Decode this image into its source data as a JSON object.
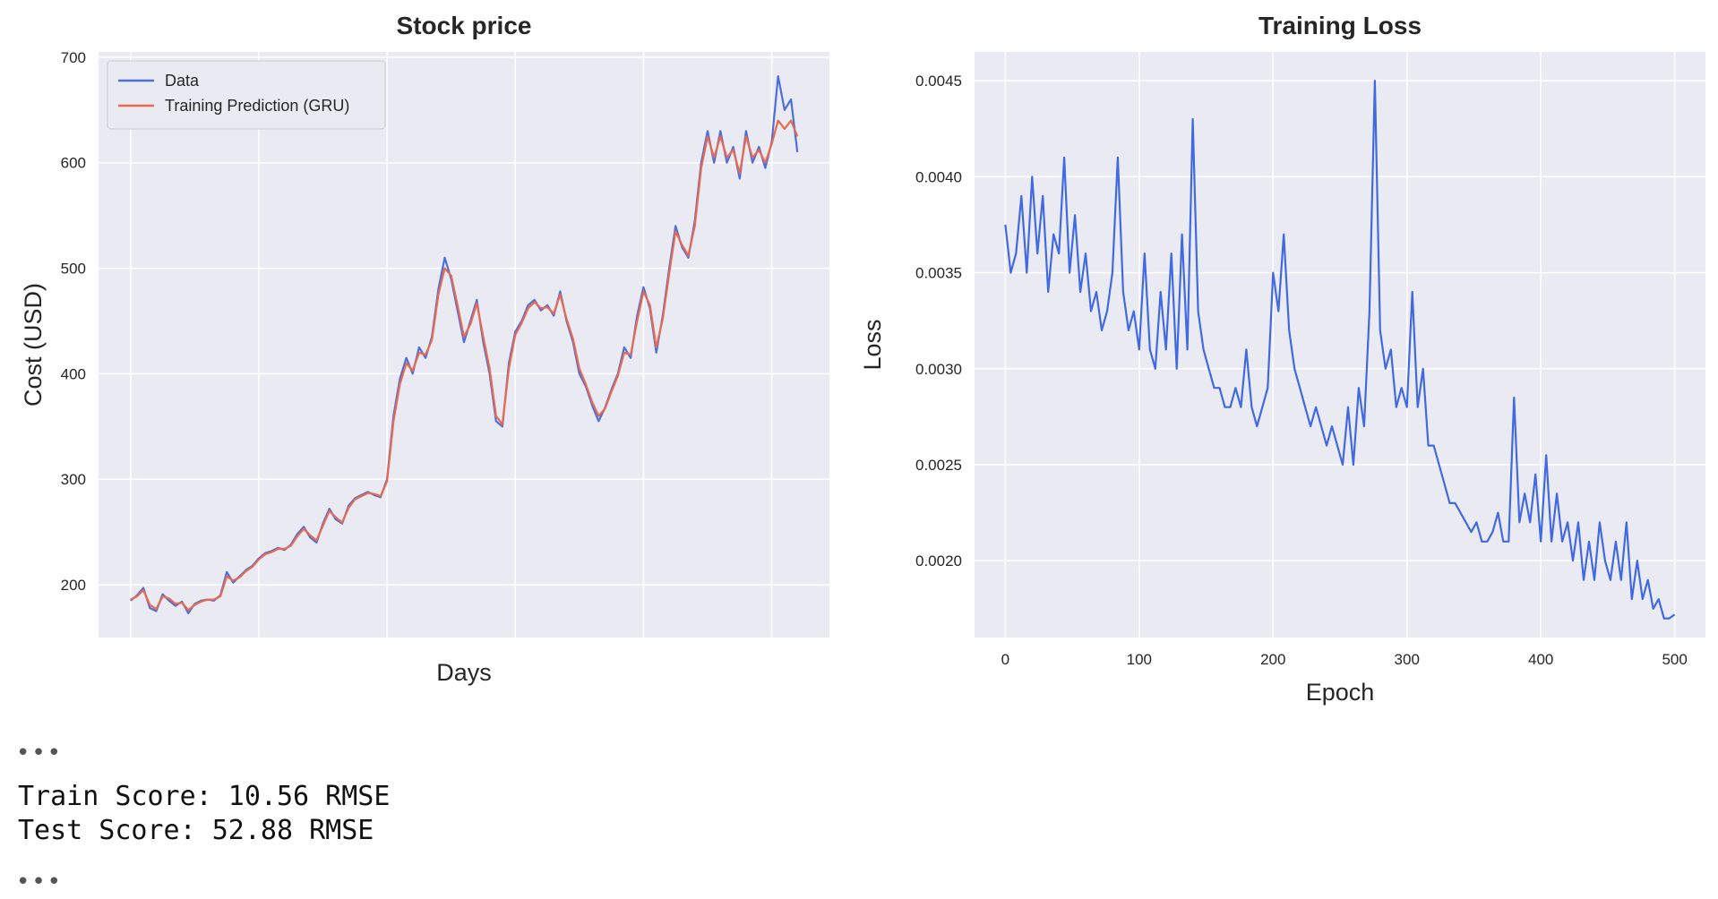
{
  "chart_data": [
    {
      "type": "line",
      "title": "Stock price",
      "xlabel": "Days",
      "ylabel": "Cost (USD)",
      "ylim": [
        150,
        705
      ],
      "xlim": [
        -25,
        545
      ],
      "yticks": [
        200,
        300,
        400,
        500,
        600,
        700
      ],
      "xticks": [],
      "grid": true,
      "legend_position": "top-left",
      "series": [
        {
          "name": "Data",
          "color": "#4c6fde",
          "x": [
            0,
            5,
            10,
            15,
            20,
            25,
            30,
            35,
            40,
            45,
            50,
            55,
            60,
            65,
            70,
            75,
            80,
            85,
            90,
            95,
            100,
            105,
            110,
            115,
            120,
            125,
            130,
            135,
            140,
            145,
            150,
            155,
            160,
            165,
            170,
            175,
            180,
            185,
            190,
            195,
            200,
            205,
            210,
            215,
            220,
            225,
            230,
            235,
            240,
            245,
            250,
            255,
            260,
            265,
            270,
            275,
            280,
            285,
            290,
            295,
            300,
            305,
            310,
            315,
            320,
            325,
            330,
            335,
            340,
            345,
            350,
            355,
            360,
            365,
            370,
            375,
            380,
            385,
            390,
            395,
            400,
            405,
            410,
            415,
            420,
            425,
            430,
            435,
            440,
            445,
            450,
            455,
            460,
            465,
            470,
            475,
            480,
            485,
            490,
            495,
            500,
            505,
            510,
            515,
            520
          ],
          "values": [
            185,
            190,
            197,
            178,
            175,
            191,
            185,
            180,
            184,
            173,
            182,
            185,
            186,
            185,
            190,
            212,
            202,
            208,
            214,
            218,
            225,
            230,
            232,
            235,
            233,
            238,
            248,
            255,
            245,
            240,
            258,
            272,
            262,
            258,
            275,
            282,
            285,
            288,
            285,
            283,
            300,
            360,
            395,
            415,
            400,
            425,
            415,
            435,
            480,
            510,
            490,
            460,
            430,
            450,
            470,
            430,
            400,
            355,
            350,
            410,
            440,
            450,
            465,
            470,
            460,
            465,
            455,
            478,
            450,
            430,
            400,
            388,
            370,
            355,
            368,
            385,
            400,
            425,
            415,
            455,
            482,
            462,
            420,
            455,
            500,
            540,
            520,
            510,
            545,
            600,
            630,
            600,
            630,
            600,
            615,
            585,
            630,
            600,
            615,
            595,
            620,
            682,
            650,
            660,
            610
          ]
        },
        {
          "name": "Training Prediction (GRU)",
          "color": "#e8694f",
          "x": [
            0,
            5,
            10,
            15,
            20,
            25,
            30,
            35,
            40,
            45,
            50,
            55,
            60,
            65,
            70,
            75,
            80,
            85,
            90,
            95,
            100,
            105,
            110,
            115,
            120,
            125,
            130,
            135,
            140,
            145,
            150,
            155,
            160,
            165,
            170,
            175,
            180,
            185,
            190,
            195,
            200,
            205,
            210,
            215,
            220,
            225,
            230,
            235,
            240,
            245,
            250,
            255,
            260,
            265,
            270,
            275,
            280,
            285,
            290,
            295,
            300,
            305,
            310,
            315,
            320,
            325,
            330,
            335,
            340,
            345,
            350,
            355,
            360,
            365,
            370,
            375,
            380,
            385,
            390,
            395,
            400,
            405,
            410,
            415,
            420,
            425,
            430,
            435,
            440,
            445,
            450,
            455,
            460,
            465,
            470,
            475,
            480,
            485,
            490,
            495,
            500,
            505,
            510,
            515,
            520
          ],
          "values": [
            186,
            189,
            195,
            181,
            177,
            189,
            187,
            182,
            183,
            176,
            181,
            184,
            186,
            186,
            189,
            208,
            204,
            207,
            213,
            217,
            224,
            229,
            231,
            234,
            234,
            237,
            246,
            253,
            247,
            242,
            256,
            270,
            264,
            259,
            273,
            281,
            284,
            287,
            286,
            284,
            298,
            355,
            390,
            410,
            403,
            420,
            418,
            432,
            475,
            500,
            493,
            465,
            435,
            447,
            467,
            435,
            405,
            360,
            352,
            405,
            437,
            448,
            462,
            468,
            462,
            463,
            457,
            475,
            452,
            433,
            405,
            390,
            373,
            360,
            367,
            383,
            398,
            420,
            418,
            450,
            478,
            465,
            425,
            452,
            495,
            535,
            522,
            512,
            540,
            595,
            625,
            605,
            625,
            605,
            612,
            590,
            625,
            605,
            612,
            600,
            618,
            640,
            632,
            640,
            625
          ]
        }
      ]
    },
    {
      "type": "line",
      "title": "Training Loss",
      "xlabel": "Epoch",
      "ylabel": "Loss",
      "xlim": [
        -23,
        523
      ],
      "ylim": [
        0.0016,
        0.00465
      ],
      "xticks": [
        0,
        100,
        200,
        300,
        400,
        500
      ],
      "yticks": [
        0.002,
        0.0025,
        0.003,
        0.0035,
        0.004,
        0.0045
      ],
      "grid": true,
      "series": [
        {
          "name": "",
          "color": "#4169e1",
          "x": [
            0,
            4,
            8,
            12,
            16,
            20,
            24,
            28,
            32,
            36,
            40,
            44,
            48,
            52,
            56,
            60,
            64,
            68,
            72,
            76,
            80,
            84,
            88,
            92,
            96,
            100,
            104,
            108,
            112,
            116,
            120,
            124,
            128,
            132,
            136,
            140,
            144,
            148,
            152,
            156,
            160,
            164,
            168,
            172,
            176,
            180,
            184,
            188,
            192,
            196,
            200,
            204,
            208,
            212,
            216,
            220,
            224,
            228,
            232,
            236,
            240,
            244,
            248,
            252,
            256,
            260,
            264,
            268,
            272,
            276,
            280,
            284,
            288,
            292,
            296,
            300,
            304,
            308,
            312,
            316,
            320,
            324,
            328,
            332,
            336,
            340,
            344,
            348,
            352,
            356,
            360,
            364,
            368,
            372,
            376,
            380,
            384,
            388,
            392,
            396,
            400,
            404,
            408,
            412,
            416,
            420,
            424,
            428,
            432,
            436,
            440,
            444,
            448,
            452,
            456,
            460,
            464,
            468,
            472,
            476,
            480,
            484,
            488,
            492,
            496,
            500
          ],
          "values": [
            0.00375,
            0.0035,
            0.0036,
            0.0039,
            0.0035,
            0.004,
            0.0036,
            0.0039,
            0.0034,
            0.0037,
            0.0036,
            0.0041,
            0.0035,
            0.0038,
            0.0034,
            0.0036,
            0.0033,
            0.0034,
            0.0032,
            0.0033,
            0.0035,
            0.0041,
            0.0034,
            0.0032,
            0.0033,
            0.0031,
            0.0036,
            0.0031,
            0.003,
            0.0034,
            0.0031,
            0.0036,
            0.003,
            0.0037,
            0.0031,
            0.0043,
            0.0033,
            0.0031,
            0.003,
            0.0029,
            0.0029,
            0.0028,
            0.0028,
            0.0029,
            0.0028,
            0.0031,
            0.0028,
            0.0027,
            0.0028,
            0.0029,
            0.0035,
            0.0033,
            0.0037,
            0.0032,
            0.003,
            0.0029,
            0.0028,
            0.0027,
            0.0028,
            0.0027,
            0.0026,
            0.0027,
            0.0026,
            0.0025,
            0.0028,
            0.0025,
            0.0029,
            0.0027,
            0.0033,
            0.0045,
            0.0032,
            0.003,
            0.0031,
            0.0028,
            0.0029,
            0.0028,
            0.0034,
            0.0028,
            0.003,
            0.0026,
            0.0026,
            0.0025,
            0.0024,
            0.0023,
            0.0023,
            0.00225,
            0.0022,
            0.00215,
            0.0022,
            0.0021,
            0.0021,
            0.00215,
            0.00225,
            0.0021,
            0.0021,
            0.00285,
            0.0022,
            0.00235,
            0.0022,
            0.00245,
            0.0021,
            0.00255,
            0.0021,
            0.00235,
            0.0021,
            0.0022,
            0.002,
            0.0022,
            0.0019,
            0.0021,
            0.0019,
            0.0022,
            0.002,
            0.0019,
            0.0021,
            0.0019,
            0.0022,
            0.0018,
            0.002,
            0.0018,
            0.0019,
            0.00175,
            0.0018,
            0.0017,
            0.0017,
            0.00172
          ]
        }
      ]
    }
  ],
  "output": {
    "train_score": "Train Score: 10.56 RMSE",
    "test_score": "Test Score: 52.88 RMSE",
    "ellipsis_top": "•••",
    "ellipsis_bottom": "•••"
  },
  "style": {
    "plot_bg": "#eaeaf2",
    "grid_color": "#ffffff",
    "text_color": "#262626"
  }
}
